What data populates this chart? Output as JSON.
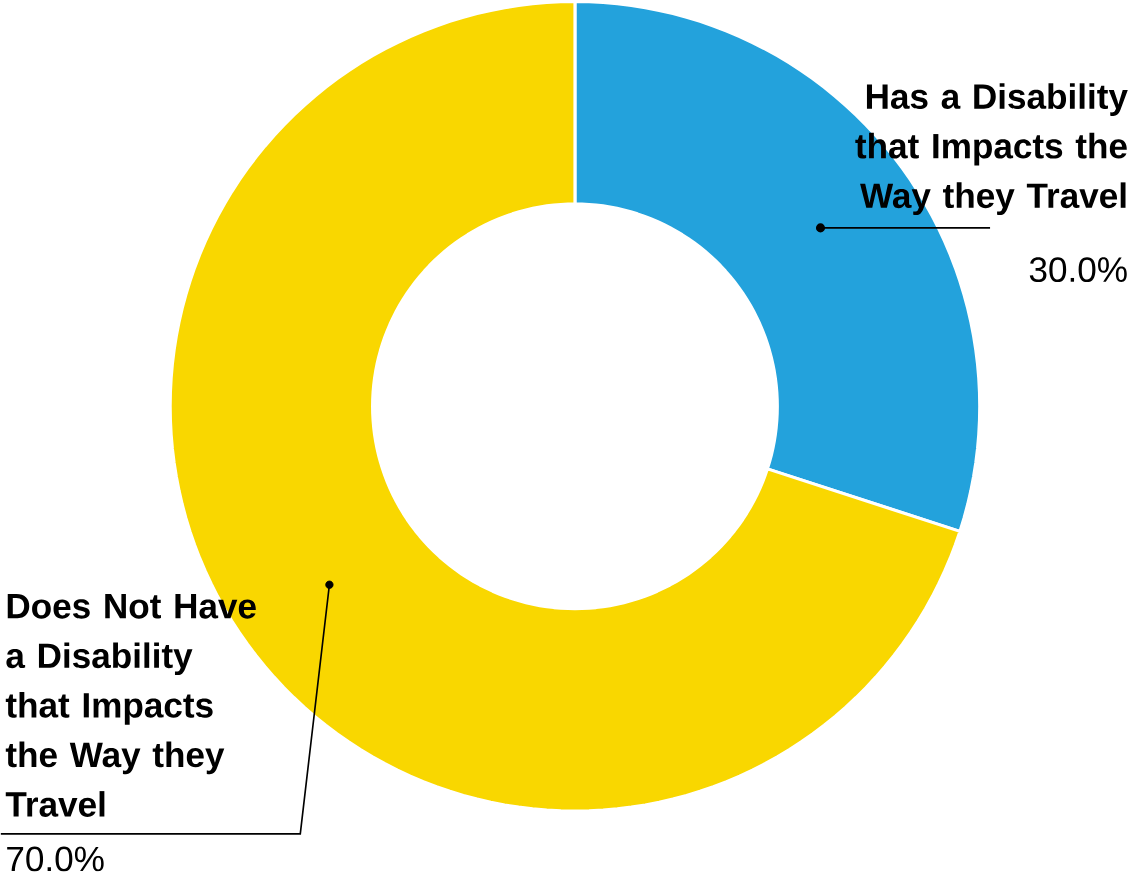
{
  "chart_data": {
    "type": "donut",
    "categories": [
      "Has a Disability that Impacts the Way they Travel",
      "Does Not Have a Disability that Impacts the Way they Travel"
    ],
    "values": [
      30.0,
      70.0
    ],
    "value_labels": [
      "30.0%",
      "70.0%"
    ],
    "colors": [
      "#23a2dc",
      "#f9d700"
    ]
  }
}
